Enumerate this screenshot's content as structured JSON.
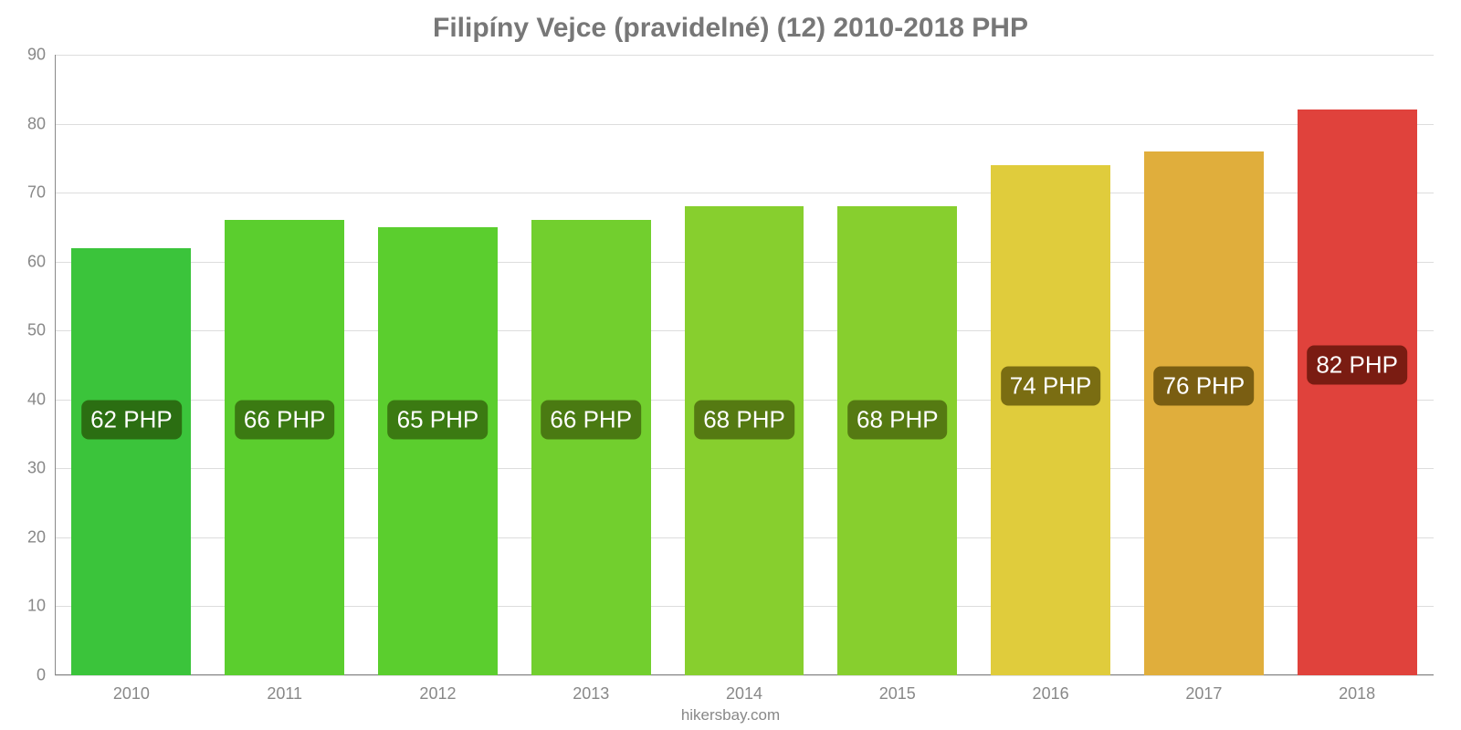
{
  "chart": {
    "type": "bar",
    "title": "Filipíny Vejce (pravidelné) (12) 2010-2018 PHP",
    "title_color": "#777777",
    "title_fontsize": 30,
    "background_color": "#ffffff",
    "grid_color": "#dddddd",
    "axis_color": "#888888",
    "tick_label_color": "#888888",
    "tick_fontsize": 18,
    "bar_label_fontsize": 26,
    "bar_label_text_color": "#ffffff",
    "bar_width_pct": 78,
    "ylim": [
      0,
      90
    ],
    "ytick_step": 10,
    "yticks": [
      0,
      10,
      20,
      30,
      40,
      50,
      60,
      70,
      80,
      90
    ],
    "categories": [
      "2010",
      "2011",
      "2012",
      "2013",
      "2014",
      "2015",
      "2016",
      "2017",
      "2018"
    ],
    "values": [
      62,
      66,
      65,
      66,
      68,
      68,
      74,
      76,
      82
    ],
    "value_labels": [
      "62 PHP",
      "66 PHP",
      "65 PHP",
      "66 PHP",
      "68 PHP",
      "68 PHP",
      "74 PHP",
      "76 PHP",
      "82 PHP"
    ],
    "bar_colors": [
      "#3bc43b",
      "#5bce2e",
      "#5bce2e",
      "#72cf2e",
      "#87cf2e",
      "#87cf2e",
      "#e0cc3c",
      "#e0ae3c",
      "#e0423c"
    ],
    "label_bg_colors": [
      "#2b6e12",
      "#3b7a12",
      "#3b7a12",
      "#4a7a12",
      "#557a12",
      "#557a12",
      "#7a6d12",
      "#7a5e12",
      "#7a1c12"
    ],
    "label_ypos_value": [
      37,
      37,
      37,
      37,
      37,
      37,
      42,
      42,
      45
    ],
    "footer_text": "hikersbay.com",
    "footer_color": "#888888",
    "footer_fontsize": 17
  }
}
